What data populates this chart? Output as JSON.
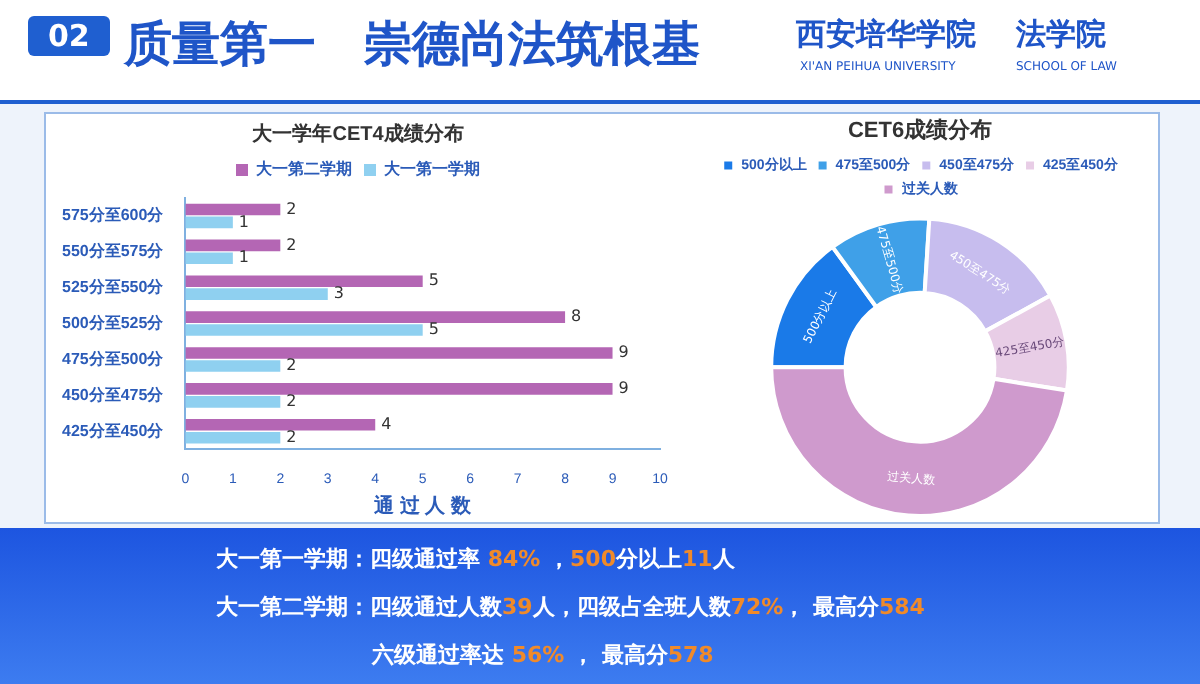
{
  "chart_data": [
    {
      "type": "bar",
      "orientation": "horizontal",
      "title": "大一学年CET4成绩分布",
      "xlabel": "通 过 人 数",
      "categories": [
        "575分至600分",
        "550分至575分",
        "525分至550分",
        "500分至525分",
        "475分至500分",
        "450分至475分",
        "425分至450分"
      ],
      "series": [
        {
          "name": "大一第二学期",
          "color": "#b466b4",
          "values": [
            2,
            2,
            5,
            8,
            9,
            9,
            4
          ]
        },
        {
          "name": "大一第一学期",
          "color": "#8fd0f0",
          "values": [
            1,
            1,
            3,
            5,
            2,
            2,
            2
          ]
        }
      ],
      "xlim": [
        0,
        10
      ],
      "xticks": [
        0,
        1,
        2,
        3,
        4,
        5,
        6,
        7,
        8,
        9,
        10
      ],
      "grid": false,
      "legend": "top",
      "data_labels": true,
      "annotations": [
        "02",
        "质量第一　崇德尚法筑根基",
        "西安培华学院",
        "XI'AN PEIHUA UNIVERSITY",
        "法学院",
        "SCHOOL OF LAW",
        "大一第一学期：四级通过率 84% ，500分以上11人",
        "大一第二学期：四级通过人数39人，四级占全班人数72%， 最高分584",
        "六级通过率达 56% ，  最高分578"
      ]
    },
    {
      "type": "donut",
      "title": "CET6成绩分布",
      "categories": [
        "500分以上",
        "475至500分",
        "450至475分",
        "425至450分",
        "过关人数"
      ],
      "values": [
        15,
        11,
        16,
        10.5,
        47.5
      ],
      "colors": [
        "#1a7ae8",
        "#3fa0e8",
        "#c7bdee",
        "#e8cde6",
        "#cf9acd"
      ],
      "legend": "top"
    }
  ]
}
